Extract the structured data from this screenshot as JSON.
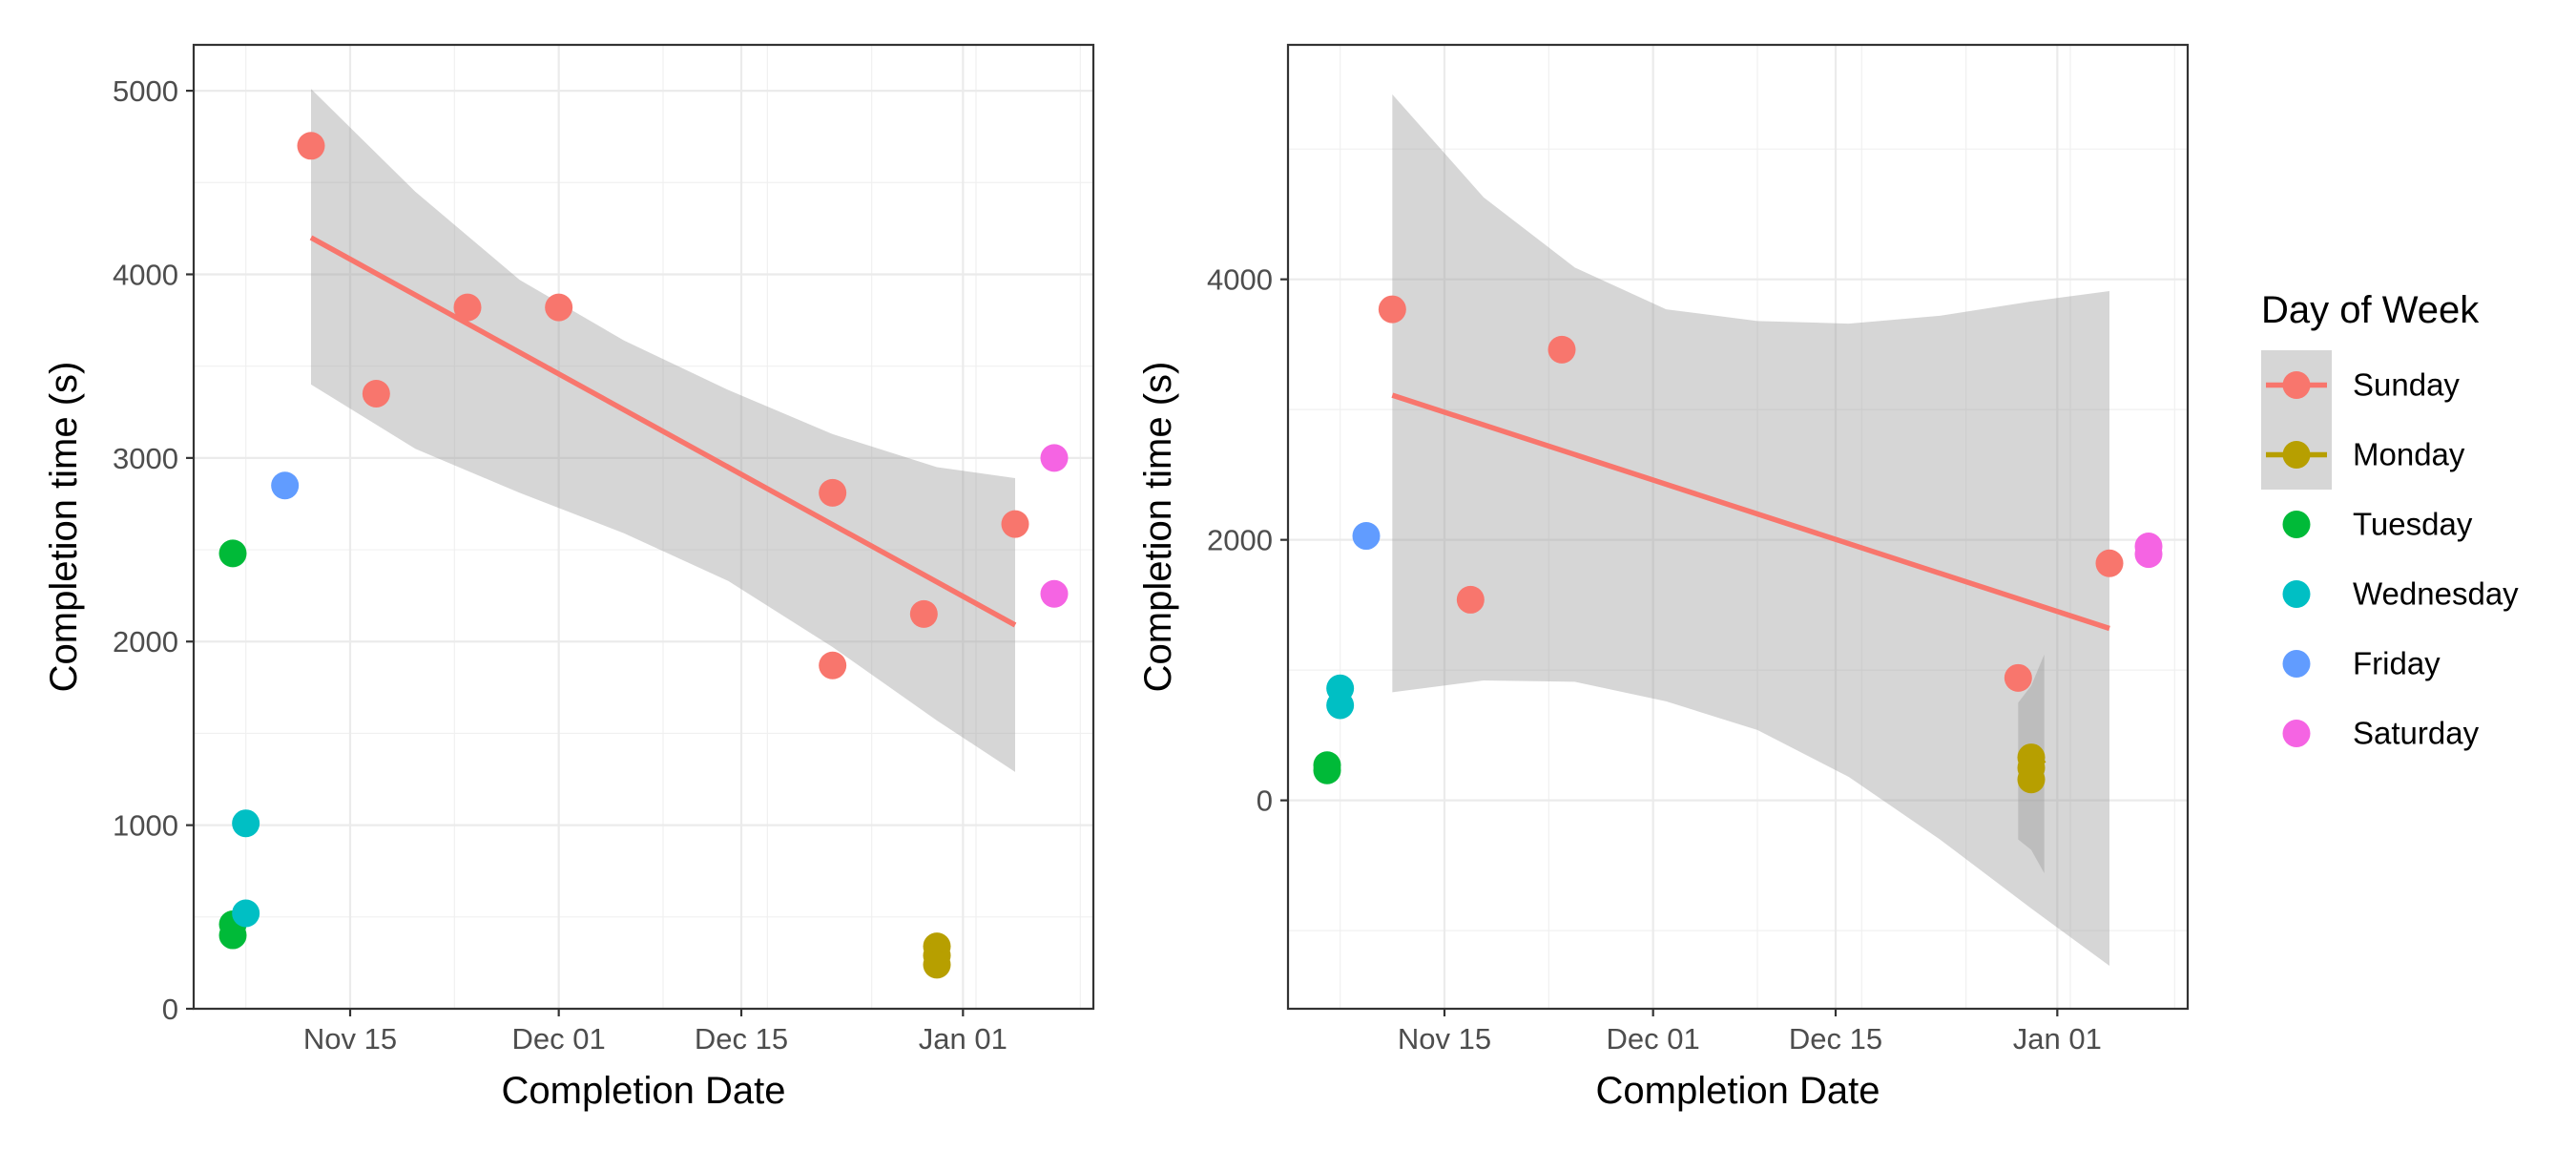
{
  "legend": {
    "title": "Day of Week",
    "items": [
      {
        "label": "Sunday",
        "color": "#F8766D",
        "smooth": true
      },
      {
        "label": "Monday",
        "color": "#B79F00",
        "smooth": true
      },
      {
        "label": "Tuesday",
        "color": "#00BA38",
        "smooth": false
      },
      {
        "label": "Wednesday",
        "color": "#00BFC4",
        "smooth": false
      },
      {
        "label": "Friday",
        "color": "#619CFF",
        "smooth": false
      },
      {
        "label": "Saturday",
        "color": "#F564E3",
        "smooth": false
      }
    ]
  },
  "chart_data": [
    {
      "type": "scatter",
      "title": "",
      "xlabel": "Completion Date",
      "ylabel": "Completion time (s)",
      "x_type": "date",
      "xlim": [
        "2022-11-03",
        "2023-01-11"
      ],
      "ylim": [
        0,
        5250
      ],
      "x_ticks": [
        {
          "value": "2022-11-15",
          "label": "Nov 15"
        },
        {
          "value": "2022-12-01",
          "label": "Dec 01"
        },
        {
          "value": "2022-12-15",
          "label": "Dec 15"
        },
        {
          "value": "2023-01-01",
          "label": "Jan 01"
        }
      ],
      "y_ticks": [
        {
          "value": 0,
          "label": "0"
        },
        {
          "value": 1000,
          "label": "1000"
        },
        {
          "value": 2000,
          "label": "2000"
        },
        {
          "value": 3000,
          "label": "3000"
        },
        {
          "value": 4000,
          "label": "4000"
        },
        {
          "value": 5000,
          "label": "5000"
        }
      ],
      "grid": true,
      "series": [
        {
          "name": "Sunday",
          "color": "#F8766D",
          "points": [
            {
              "x": "2022-11-12",
              "y": 4700
            },
            {
              "x": "2022-11-17",
              "y": 3350
            },
            {
              "x": "2022-11-24",
              "y": 3820
            },
            {
              "x": "2022-12-01",
              "y": 3820
            },
            {
              "x": "2022-12-22",
              "y": 2810
            },
            {
              "x": "2022-12-22",
              "y": 1870
            },
            {
              "x": "2022-12-29",
              "y": 2150
            },
            {
              "x": "2023-01-05",
              "y": 2640
            }
          ]
        },
        {
          "name": "Monday",
          "color": "#B79F00",
          "points": [
            {
              "x": "2022-12-30",
              "y": 340
            },
            {
              "x": "2022-12-30",
              "y": 290
            },
            {
              "x": "2022-12-30",
              "y": 240
            }
          ]
        },
        {
          "name": "Tuesday",
          "color": "#00BA38",
          "points": [
            {
              "x": "2022-11-06",
              "y": 2480
            },
            {
              "x": "2022-11-06",
              "y": 460
            },
            {
              "x": "2022-11-06",
              "y": 400
            }
          ]
        },
        {
          "name": "Wednesday",
          "color": "#00BFC4",
          "points": [
            {
              "x": "2022-11-07",
              "y": 1010
            },
            {
              "x": "2022-11-07",
              "y": 520
            }
          ]
        },
        {
          "name": "Friday",
          "color": "#619CFF",
          "points": [
            {
              "x": "2022-11-10",
              "y": 2850
            }
          ]
        },
        {
          "name": "Saturday",
          "color": "#F564E3",
          "points": [
            {
              "x": "2023-01-08",
              "y": 3000
            },
            {
              "x": "2023-01-08",
              "y": 2260
            }
          ]
        }
      ],
      "fits": [
        {
          "name": "Sunday",
          "color": "#F8766D",
          "line": [
            {
              "x": "2022-11-12",
              "y": 4200
            },
            {
              "x": "2023-01-05",
              "y": 2090
            }
          ],
          "band": [
            {
              "x": "2022-11-12",
              "lo": 3400,
              "hi": 5010
            },
            {
              "x": "2022-11-20",
              "lo": 3050,
              "hi": 4450
            },
            {
              "x": "2022-11-28",
              "lo": 2810,
              "hi": 3970
            },
            {
              "x": "2022-12-06",
              "lo": 2590,
              "hi": 3640
            },
            {
              "x": "2022-12-14",
              "lo": 2330,
              "hi": 3370
            },
            {
              "x": "2022-12-22",
              "lo": 1970,
              "hi": 3130
            },
            {
              "x": "2022-12-30",
              "lo": 1570,
              "hi": 2950
            },
            {
              "x": "2023-01-05",
              "lo": 1290,
              "hi": 2890
            }
          ]
        }
      ]
    },
    {
      "type": "scatter",
      "title": "",
      "xlabel": "Completion Date",
      "ylabel": "Completion time (s)",
      "x_type": "date",
      "xlim": [
        "2022-11-03",
        "2023-01-11"
      ],
      "ylim": [
        -1600,
        5800
      ],
      "x_ticks": [
        {
          "value": "2022-11-15",
          "label": "Nov 15"
        },
        {
          "value": "2022-12-01",
          "label": "Dec 01"
        },
        {
          "value": "2022-12-15",
          "label": "Dec 15"
        },
        {
          "value": "2023-01-01",
          "label": "Jan 01"
        }
      ],
      "y_ticks": [
        {
          "value": 0,
          "label": "0"
        },
        {
          "value": 2000,
          "label": "2000"
        },
        {
          "value": 4000,
          "label": "4000"
        }
      ],
      "grid": true,
      "series": [
        {
          "name": "Sunday",
          "color": "#F8766D",
          "points": [
            {
              "x": "2022-11-11",
              "y": 3770
            },
            {
              "x": "2022-11-17",
              "y": 1540
            },
            {
              "x": "2022-11-24",
              "y": 3460
            },
            {
              "x": "2022-12-29",
              "y": 940
            },
            {
              "x": "2023-01-05",
              "y": 1820
            }
          ]
        },
        {
          "name": "Monday",
          "color": "#B79F00",
          "points": [
            {
              "x": "2022-12-30",
              "y": 330
            },
            {
              "x": "2022-12-30",
              "y": 250
            },
            {
              "x": "2022-12-30",
              "y": 160
            }
          ]
        },
        {
          "name": "Tuesday",
          "color": "#00BA38",
          "points": [
            {
              "x": "2022-11-06",
              "y": 270
            },
            {
              "x": "2022-11-06",
              "y": 230
            }
          ]
        },
        {
          "name": "Wednesday",
          "color": "#00BFC4",
          "points": [
            {
              "x": "2022-11-07",
              "y": 860
            },
            {
              "x": "2022-11-07",
              "y": 730
            }
          ]
        },
        {
          "name": "Friday",
          "color": "#619CFF",
          "points": [
            {
              "x": "2022-11-09",
              "y": 2030
            }
          ]
        },
        {
          "name": "Saturday",
          "color": "#F564E3",
          "points": [
            {
              "x": "2023-01-08",
              "y": 1950
            },
            {
              "x": "2023-01-08",
              "y": 1890
            }
          ]
        }
      ],
      "fits": [
        {
          "name": "Sunday",
          "color": "#F8766D",
          "line": [
            {
              "x": "2022-11-11",
              "y": 3110
            },
            {
              "x": "2023-01-05",
              "y": 1320
            }
          ],
          "band": [
            {
              "x": "2022-11-11",
              "lo": 830,
              "hi": 5420
            },
            {
              "x": "2022-11-18",
              "lo": 920,
              "hi": 4630
            },
            {
              "x": "2022-11-25",
              "lo": 910,
              "hi": 4090
            },
            {
              "x": "2022-12-02",
              "lo": 760,
              "hi": 3770
            },
            {
              "x": "2022-12-09",
              "lo": 540,
              "hi": 3680
            },
            {
              "x": "2022-12-16",
              "lo": 180,
              "hi": 3660
            },
            {
              "x": "2022-12-23",
              "lo": -300,
              "hi": 3720
            },
            {
              "x": "2022-12-30",
              "lo": -830,
              "hi": 3830
            },
            {
              "x": "2023-01-05",
              "lo": -1270,
              "hi": 3910
            }
          ]
        },
        {
          "name": "Monday",
          "color": "#B79F00",
          "line": [
            {
              "x": "2022-12-30",
              "y": 220
            },
            {
              "x": "2022-12-31",
              "y": 310
            }
          ],
          "band": [
            {
              "x": "2022-12-29",
              "lo": -300,
              "hi": 750
            },
            {
              "x": "2022-12-30",
              "lo": -380,
              "hi": 880
            },
            {
              "x": "2022-12-31",
              "lo": -560,
              "hi": 1120
            }
          ]
        }
      ]
    }
  ]
}
